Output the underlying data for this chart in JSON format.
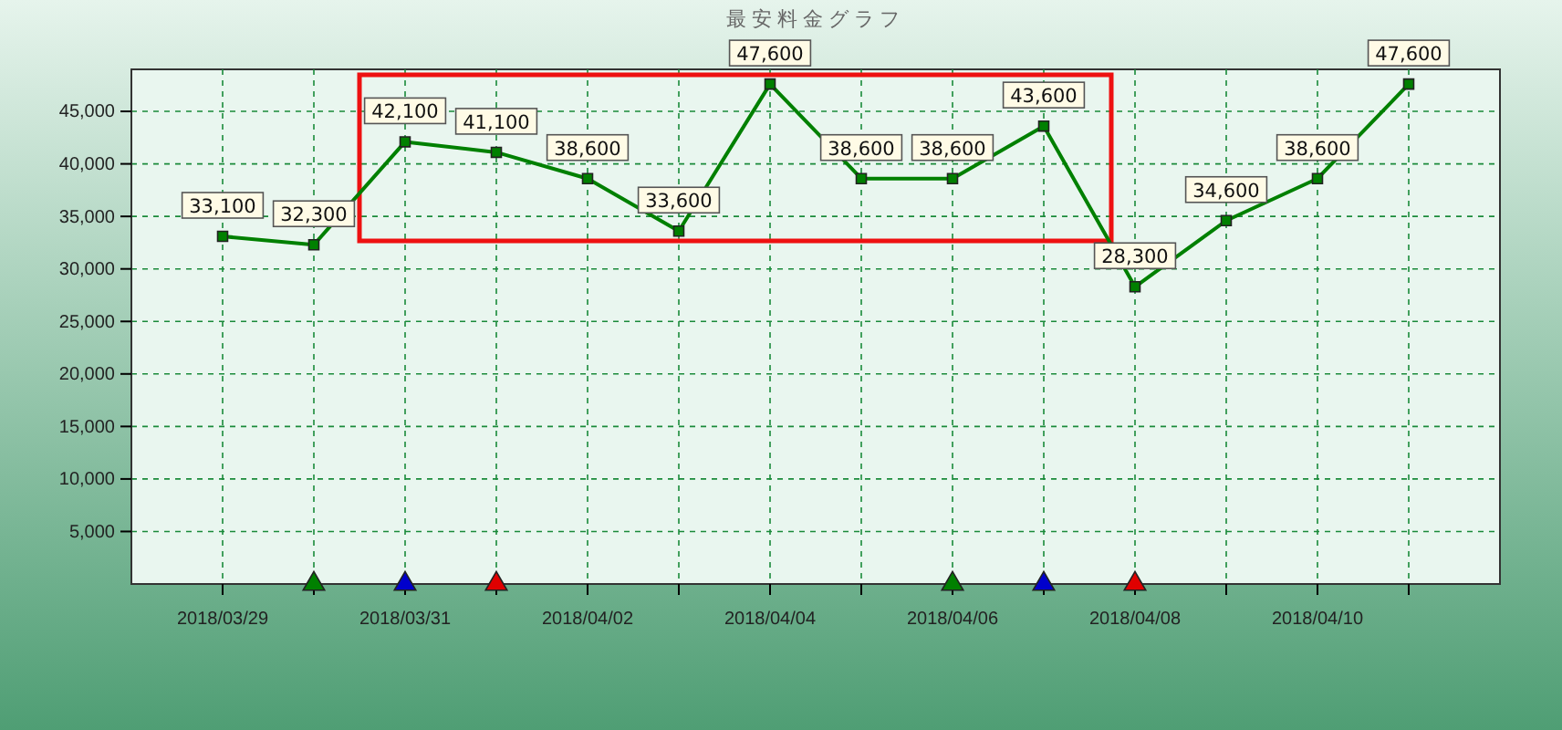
{
  "chart_data": {
    "type": "line",
    "title": "最安料金グラフ",
    "x": [
      "2018-03-29",
      "2018-03-30",
      "2018-03-31",
      "2018-04-01",
      "2018-04-02",
      "2018-04-03",
      "2018-04-04",
      "2018-04-05",
      "2018-04-06",
      "2018-04-07",
      "2018-04-08",
      "2018-04-09",
      "2018-04-10",
      "2018-04-11"
    ],
    "series": [
      {
        "color": "#008000",
        "marker": "square",
        "values": [
          33100,
          32300,
          42100,
          41100,
          38600,
          33600,
          47600,
          38600,
          38600,
          43600,
          28300,
          34600,
          38600,
          47600
        ],
        "value_labels": [
          "33,100",
          "32,300",
          "42,100",
          "41,100",
          "38,600",
          "33,600",
          "47,600",
          "38,600",
          "38,600",
          "43,600",
          "28,300",
          "34,600",
          "38,600",
          "47,600"
        ]
      },
      {
        "type": "scatter",
        "color": "#e00000",
        "marker": "triangle",
        "x": [
          "2018-04-01",
          "2018-04-08"
        ],
        "values": [
          0,
          0
        ]
      },
      {
        "type": "scatter",
        "color": "#008000",
        "marker": "triangle",
        "x": [
          "2018-03-30",
          "2018-04-06"
        ],
        "values": [
          0,
          0
        ]
      },
      {
        "type": "scatter",
        "color": "#0000cc",
        "marker": "triangle",
        "x": [
          "2018-03-31",
          "2018-04-07"
        ],
        "values": [
          0,
          0
        ]
      }
    ],
    "xlim": [
      "2018-03-28",
      "2018-04-12"
    ],
    "xticks": [
      {
        "value": "2018-03-29",
        "label": "2018/03/29"
      },
      {
        "value": "2018-03-30",
        "label": null
      },
      {
        "value": "2018-03-31",
        "label": "2018/03/31"
      },
      {
        "value": "2018-04-01",
        "label": null
      },
      {
        "value": "2018-04-02",
        "label": "2018/04/02"
      },
      {
        "value": "2018-04-03",
        "label": null
      },
      {
        "value": "2018-04-04",
        "label": "2018/04/04"
      },
      {
        "value": "2018-04-05",
        "label": null
      },
      {
        "value": "2018-04-06",
        "label": "2018/04/06"
      },
      {
        "value": "2018-04-07",
        "label": null
      },
      {
        "value": "2018-04-08",
        "label": "2018/04/08"
      },
      {
        "value": "2018-04-09",
        "label": null
      },
      {
        "value": "2018-04-10",
        "label": "2018/04/10"
      },
      {
        "value": "2018-04-11",
        "label": null
      }
    ],
    "ylim": [
      0,
      49000
    ],
    "yticks": [
      {
        "value": 5000,
        "label": "5,000"
      },
      {
        "value": 10000,
        "label": "10,000"
      },
      {
        "value": 15000,
        "label": "15,000"
      },
      {
        "value": 20000,
        "label": "20,000"
      },
      {
        "value": 25000,
        "label": "25,000"
      },
      {
        "value": 30000,
        "label": "30,000"
      },
      {
        "value": 35000,
        "label": "35,000"
      },
      {
        "value": 40000,
        "label": "40,000"
      },
      {
        "value": 45000,
        "label": "45,000"
      }
    ],
    "grid": true
  }
}
